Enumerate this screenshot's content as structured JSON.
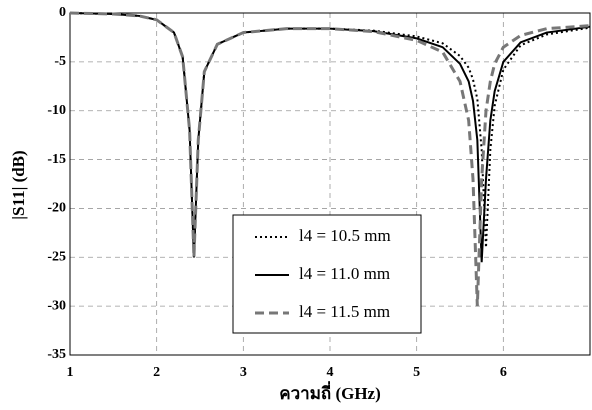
{
  "chart_data": {
    "type": "line",
    "xlabel": "ความถี่ (GHz)",
    "ylabel": "|S11| (dB)",
    "x": [
      1,
      1.5,
      1.8,
      2.0,
      2.2,
      2.3,
      2.38,
      2.43,
      2.48,
      2.55,
      2.7,
      3.0,
      3.5,
      4.0,
      4.5,
      5.0,
      5.3,
      5.5,
      5.6,
      5.65,
      5.7,
      5.75,
      5.8,
      5.85,
      5.9,
      6.0,
      6.2,
      6.5,
      7.0
    ],
    "series": [
      {
        "name": "l4 = 10.5 mm",
        "color": "#000000",
        "dash": "dotted",
        "values": [
          0,
          -0.1,
          -0.3,
          -0.7,
          -2.0,
          -4.5,
          -12,
          -25,
          -13,
          -6,
          -3.2,
          -2.0,
          -1.6,
          -1.6,
          -1.8,
          -2.4,
          -3.1,
          -4.4,
          -5.6,
          -6.8,
          -8.8,
          -14,
          -24,
          -14,
          -9.5,
          -5.8,
          -3.3,
          -2.2,
          -1.5
        ]
      },
      {
        "name": "l4 = 11.0 mm",
        "color": "#000000",
        "dash": "solid",
        "values": [
          0,
          -0.1,
          -0.3,
          -0.7,
          -2.0,
          -4.5,
          -12,
          -25,
          -13,
          -6,
          -3.2,
          -2.0,
          -1.6,
          -1.6,
          -1.85,
          -2.6,
          -3.5,
          -5.2,
          -7,
          -9,
          -13,
          -25.5,
          -17,
          -11,
          -8,
          -5,
          -3,
          -2,
          -1.4
        ]
      },
      {
        "name": "l4 = 11.5 mm",
        "color": "#777777",
        "dash": "dashed",
        "values": [
          0,
          -0.1,
          -0.3,
          -0.7,
          -2.0,
          -4.5,
          -12,
          -25,
          -13,
          -6,
          -3.2,
          -2.0,
          -1.6,
          -1.6,
          -1.9,
          -2.8,
          -4,
          -7,
          -11,
          -17,
          -30,
          -17,
          -10,
          -7,
          -5.2,
          -3.5,
          -2.3,
          -1.6,
          -1.3
        ]
      }
    ],
    "xlim": [
      1,
      7
    ],
    "ylim": [
      -35,
      0
    ],
    "xticks": [
      1,
      2,
      3,
      4,
      5,
      6
    ],
    "yticks": [
      0,
      -5,
      -10,
      -15,
      -20,
      -25,
      -30,
      -35
    ],
    "grid": true
  }
}
